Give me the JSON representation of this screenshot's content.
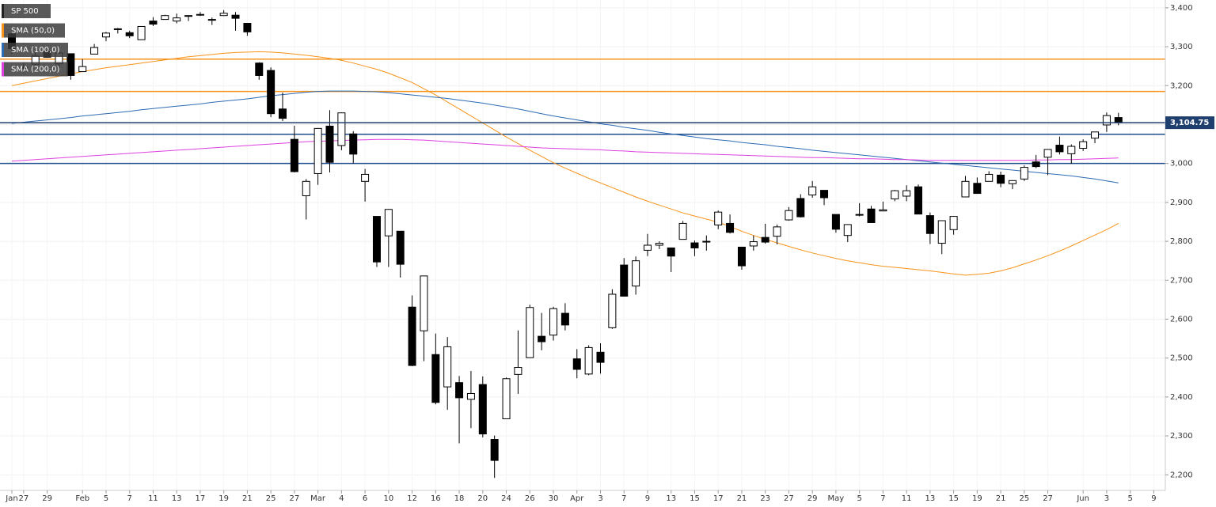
{
  "chart_data": {
    "type": "candlestick",
    "categories": [
      "Jan",
      "27",
      null,
      "29",
      null,
      null,
      "Feb",
      null,
      "5",
      null,
      "7",
      null,
      "11",
      null,
      "13",
      null,
      "17",
      null,
      "19",
      null,
      "21",
      null,
      "25",
      null,
      "27",
      null,
      "Mar",
      null,
      "4",
      null,
      "6",
      null,
      "10",
      null,
      "12",
      null,
      "16",
      null,
      "18",
      null,
      "20",
      null,
      "24",
      null,
      "26",
      null,
      "30",
      null,
      "Apr",
      null,
      "3",
      null,
      "7",
      null,
      "9",
      null,
      "13",
      null,
      "15",
      null,
      "17",
      null,
      "21",
      null,
      "23",
      null,
      "27",
      null,
      "29",
      null,
      "May",
      null,
      "5",
      null,
      "7",
      null,
      "11",
      null,
      "13",
      null,
      "15",
      null,
      "19",
      null,
      "21",
      null,
      "25",
      null,
      "27",
      null,
      null,
      "Jun",
      null,
      "3",
      null,
      "5",
      null,
      "9"
    ],
    "ohlc": {
      "name": "SP 500",
      "open": [
        3333,
        3247,
        3255,
        3289,
        3256,
        3282,
        3236,
        3281,
        3325,
        3345,
        3336,
        3318,
        3366,
        3370,
        3366,
        3378,
        3381,
        3369,
        3380,
        3381,
        3360,
        3258,
        3239,
        3140,
        3062,
        2917,
        2974,
        3096,
        3046,
        3076,
        2954,
        2864,
        2814,
        2826,
        2631,
        2570,
        2509,
        2426,
        2437,
        2394,
        2432,
        2291,
        2344,
        2458,
        2501,
        2556,
        2559,
        2615,
        2498,
        2459,
        2515,
        2578,
        2739,
        2685,
        2777,
        2790,
        2783,
        2805,
        2796,
        2799,
        2842,
        2846,
        2785,
        2788,
        2810,
        2813,
        2855,
        2910,
        2919,
        2931,
        2869,
        2815,
        2869,
        2883,
        2878,
        2909,
        2916,
        2940,
        2866,
        2795,
        2830,
        2914,
        2949,
        2954,
        2970,
        2948,
        2960,
        3004,
        3016,
        3047,
        3025,
        3039,
        3065,
        3099,
        3118,
        null,
        null,
        null
      ],
      "high": [
        3337,
        3259,
        3286,
        3293,
        3286,
        3282,
        3268,
        3307,
        3338,
        3348,
        3341,
        3352,
        3376,
        3382,
        3385,
        3381,
        3389,
        3375,
        3394,
        3389,
        3361,
        3260,
        3247,
        3182,
        3097,
        2960,
        3091,
        3137,
        3131,
        3083,
        2986,
        2864,
        2883,
        2826,
        2661,
        2711,
        2563,
        2554,
        2454,
        2467,
        2453,
        2301,
        2450,
        2571,
        2637,
        2616,
        2632,
        2641,
        2523,
        2533,
        2538,
        2677,
        2757,
        2761,
        2819,
        2800,
        2783,
        2852,
        2802,
        2815,
        2879,
        2869,
        2786,
        2815,
        2845,
        2843,
        2888,
        2921,
        2955,
        2931,
        2869,
        2844,
        2898,
        2891,
        2902,
        2932,
        2944,
        2946,
        2874,
        2853,
        2865,
        2968,
        2964,
        2980,
        2979,
        2957,
        2995,
        3022,
        3036,
        3069,
        3049,
        3062,
        3081,
        3131,
        3130,
        null,
        null,
        null
      ],
      "low": [
        3281,
        3234,
        3253,
        3272,
        3243,
        3215,
        3236,
        3281,
        3314,
        3334,
        3322,
        3318,
        3353,
        3370,
        3360,
        3366,
        3379,
        3356,
        3379,
        3341,
        3328,
        3215,
        3119,
        3109,
        2977,
        2856,
        2945,
        2977,
        3034,
        3000,
        2902,
        2734,
        2734,
        2707,
        2479,
        2492,
        2381,
        2367,
        2281,
        2320,
        2296,
        2192,
        2344,
        2408,
        2501,
        2520,
        2545,
        2571,
        2448,
        2456,
        2460,
        2575,
        2658,
        2663,
        2762,
        2780,
        2721,
        2805,
        2762,
        2776,
        2831,
        2820,
        2727,
        2776,
        2794,
        2792,
        2853,
        2861,
        2912,
        2893,
        2822,
        2798,
        2864,
        2848,
        2877,
        2903,
        2903,
        2870,
        2793,
        2767,
        2817,
        2914,
        2922,
        2954,
        2939,
        2934,
        2955,
        2988,
        2970,
        3023,
        2999,
        3032,
        3052,
        3081,
        3098,
        null,
        null,
        null
      ],
      "close": [
        3295,
        3244,
        3276,
        3273,
        3284,
        3226,
        3249,
        3298,
        3335,
        3346,
        3328,
        3352,
        3358,
        3380,
        3374,
        3380,
        3383,
        3370,
        3386,
        3373,
        3338,
        3226,
        3128,
        3116,
        2979,
        2954,
        3090,
        3003,
        3130,
        3024,
        2972,
        2747,
        2882,
        2741,
        2481,
        2711,
        2386,
        2529,
        2398,
        2409,
        2305,
        2237,
        2447,
        2476,
        2630,
        2542,
        2627,
        2585,
        2471,
        2527,
        2489,
        2664,
        2659,
        2750,
        2790,
        2795,
        2762,
        2846,
        2783,
        2800,
        2875,
        2823,
        2737,
        2799,
        2798,
        2837,
        2879,
        2863,
        2940,
        2912,
        2831,
        2843,
        2868,
        2848,
        2881,
        2930,
        2930,
        2870,
        2820,
        2853,
        2864,
        2954,
        2923,
        2972,
        2949,
        2956,
        2990,
        2992,
        3036,
        3030,
        3044,
        3056,
        3081,
        3123,
        3104.75,
        null,
        null,
        null
      ]
    },
    "series": [
      {
        "name": "SMA (50,0)",
        "color": "#f7931a",
        "values": [
          3200,
          3206,
          3212,
          3218,
          3224,
          3230,
          3236,
          3241,
          3246,
          3250,
          3254,
          3258,
          3262,
          3266,
          3270,
          3274,
          3277,
          3280,
          3283,
          3285,
          3286,
          3287,
          3286,
          3284,
          3281,
          3278,
          3274,
          3270,
          3265,
          3258,
          3250,
          3242,
          3232,
          3220,
          3208,
          3192,
          3176,
          3158,
          3140,
          3122,
          3104,
          3086,
          3068,
          3051,
          3034,
          3018,
          3002,
          2988,
          2975,
          2962,
          2950,
          2938,
          2926,
          2914,
          2903,
          2893,
          2883,
          2873,
          2865,
          2857,
          2849,
          2838,
          2826,
          2815,
          2805,
          2796,
          2787,
          2778,
          2770,
          2763,
          2756,
          2750,
          2745,
          2740,
          2736,
          2733,
          2730,
          2727,
          2724,
          2720,
          2716,
          2713,
          2715,
          2718,
          2724,
          2732,
          2742,
          2752,
          2763,
          2775,
          2788,
          2802,
          2816,
          2830,
          2846,
          null,
          null,
          null
        ]
      },
      {
        "name": "SMA (100,0)",
        "color": "#2d6bb5",
        "values": [
          3103,
          3106,
          3109,
          3112,
          3115,
          3118,
          3122,
          3125,
          3128,
          3131,
          3134,
          3138,
          3141,
          3144,
          3147,
          3150,
          3153,
          3157,
          3160,
          3163,
          3166,
          3170,
          3174,
          3177,
          3180,
          3183,
          3185,
          3186,
          3186,
          3186,
          3185,
          3184,
          3182,
          3179,
          3176,
          3173,
          3170,
          3167,
          3163,
          3159,
          3155,
          3150,
          3145,
          3140,
          3134,
          3128,
          3122,
          3117,
          3112,
          3107,
          3102,
          3098,
          3093,
          3089,
          3085,
          3080,
          3076,
          3072,
          3068,
          3064,
          3061,
          3058,
          3054,
          3051,
          3048,
          3044,
          3041,
          3038,
          3034,
          3031,
          3028,
          3025,
          3022,
          3019,
          3016,
          3013,
          3010,
          3007,
          3004,
          3001,
          2998,
          2995,
          2992,
          2989,
          2986,
          2983,
          2980,
          2977,
          2974,
          2971,
          2968,
          2964,
          2960,
          2955,
          2950,
          null,
          null,
          null
        ]
      },
      {
        "name": "SMA (200,0)",
        "color": "#e040e0",
        "values": [
          3006,
          3008,
          3010,
          3012,
          3014,
          3016,
          3018,
          3020,
          3022,
          3024,
          3026,
          3028,
          3030,
          3032,
          3034,
          3036,
          3038,
          3040,
          3042,
          3044,
          3046,
          3048,
          3050,
          3052,
          3054,
          3056,
          3057,
          3058,
          3059,
          3060,
          3061,
          3062,
          3062,
          3062,
          3061,
          3060,
          3058,
          3056,
          3054,
          3052,
          3050,
          3048,
          3046,
          3044,
          3042,
          3040,
          3039,
          3038,
          3037,
          3036,
          3035,
          3033,
          3032,
          3030,
          3029,
          3028,
          3027,
          3026,
          3025,
          3024,
          3023,
          3022,
          3021,
          3020,
          3019,
          3018,
          3017,
          3016,
          3015,
          3015,
          3014,
          3013,
          3012,
          3012,
          3011,
          3010,
          3010,
          3009,
          3008,
          3008,
          3008,
          3008,
          3008,
          3008,
          3008,
          3008,
          3008,
          3009,
          3009,
          3010,
          3010,
          3011,
          3012,
          3013,
          3014,
          null,
          null,
          null
        ]
      }
    ],
    "levels": [
      {
        "value": 3268,
        "color": "#f7931a"
      },
      {
        "value": 3185,
        "color": "#f7931a"
      },
      {
        "value": 3075,
        "color": "#1f4e8c"
      },
      {
        "value": 3000,
        "color": "#1f4e8c"
      }
    ],
    "last_price": {
      "value": 3104.75,
      "label": "3,104.75",
      "color": "#1f3f6e"
    },
    "ylim": [
      2160,
      3420
    ],
    "yticks": [
      {
        "value": 2200,
        "label": "2,200"
      },
      {
        "value": 2300,
        "label": "2,300"
      },
      {
        "value": 2400,
        "label": "2,400"
      },
      {
        "value": 2500,
        "label": "2,500"
      },
      {
        "value": 2600,
        "label": "2,600"
      },
      {
        "value": 2700,
        "label": "2,700"
      },
      {
        "value": 2800,
        "label": "2,800"
      },
      {
        "value": 2900,
        "label": "2,900"
      },
      {
        "value": 3000,
        "label": "3,000"
      },
      {
        "value": 3100,
        "label": "3,100"
      },
      {
        "value": 3200,
        "label": "3,200"
      },
      {
        "value": 3300,
        "label": "3,300"
      },
      {
        "value": 3400,
        "label": "3,400"
      }
    ],
    "grid": true
  }
}
